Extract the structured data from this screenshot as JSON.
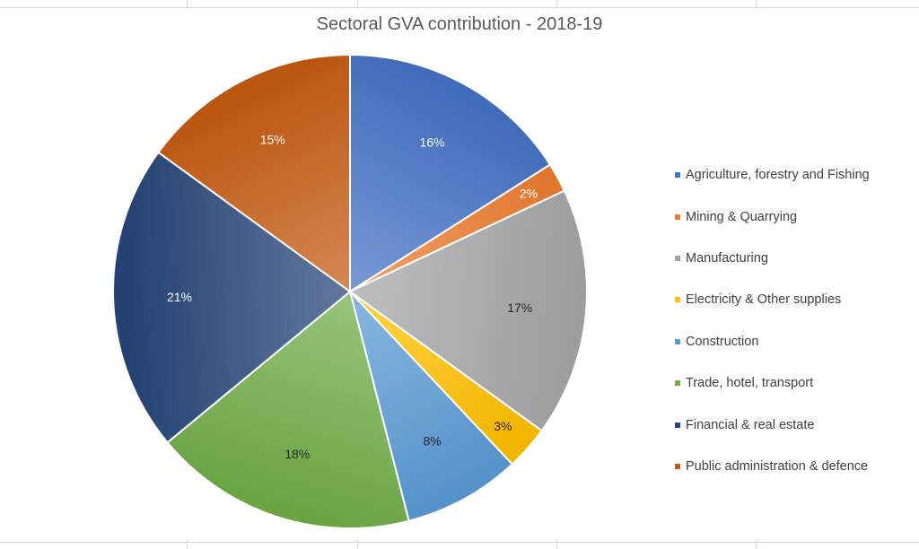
{
  "chart_data": {
    "type": "pie",
    "title": "Sectoral GVA contribution  - 2018-19",
    "start_angle_deg": 0,
    "direction": "clockwise",
    "legend_position": "right",
    "slices": [
      {
        "label": "Agriculture, forestry and Fishing",
        "value": 16,
        "display": "16%",
        "color": "#4472c4"
      },
      {
        "label": "Mining & Quarrying",
        "value": 2,
        "display": "2%",
        "color": "#ed7d31"
      },
      {
        "label": "Manufacturing",
        "value": 17,
        "display": "17%",
        "color": "#a5a5a5"
      },
      {
        "label": "Electricity & Other supplies",
        "value": 3,
        "display": "3%",
        "color": "#ffc000"
      },
      {
        "label": "Construction",
        "value": 8,
        "display": "8%",
        "color": "#5b9bd5"
      },
      {
        "label": "Trade, hotel, transport",
        "value": 18,
        "display": "18%",
        "color": "#70ad47"
      },
      {
        "label": "Financial & real estate",
        "value": 21,
        "display": "21%",
        "color": "#264478"
      },
      {
        "label": "Public administration & defence",
        "value": 15,
        "display": "15%",
        "color": "#c55a11"
      }
    ]
  }
}
